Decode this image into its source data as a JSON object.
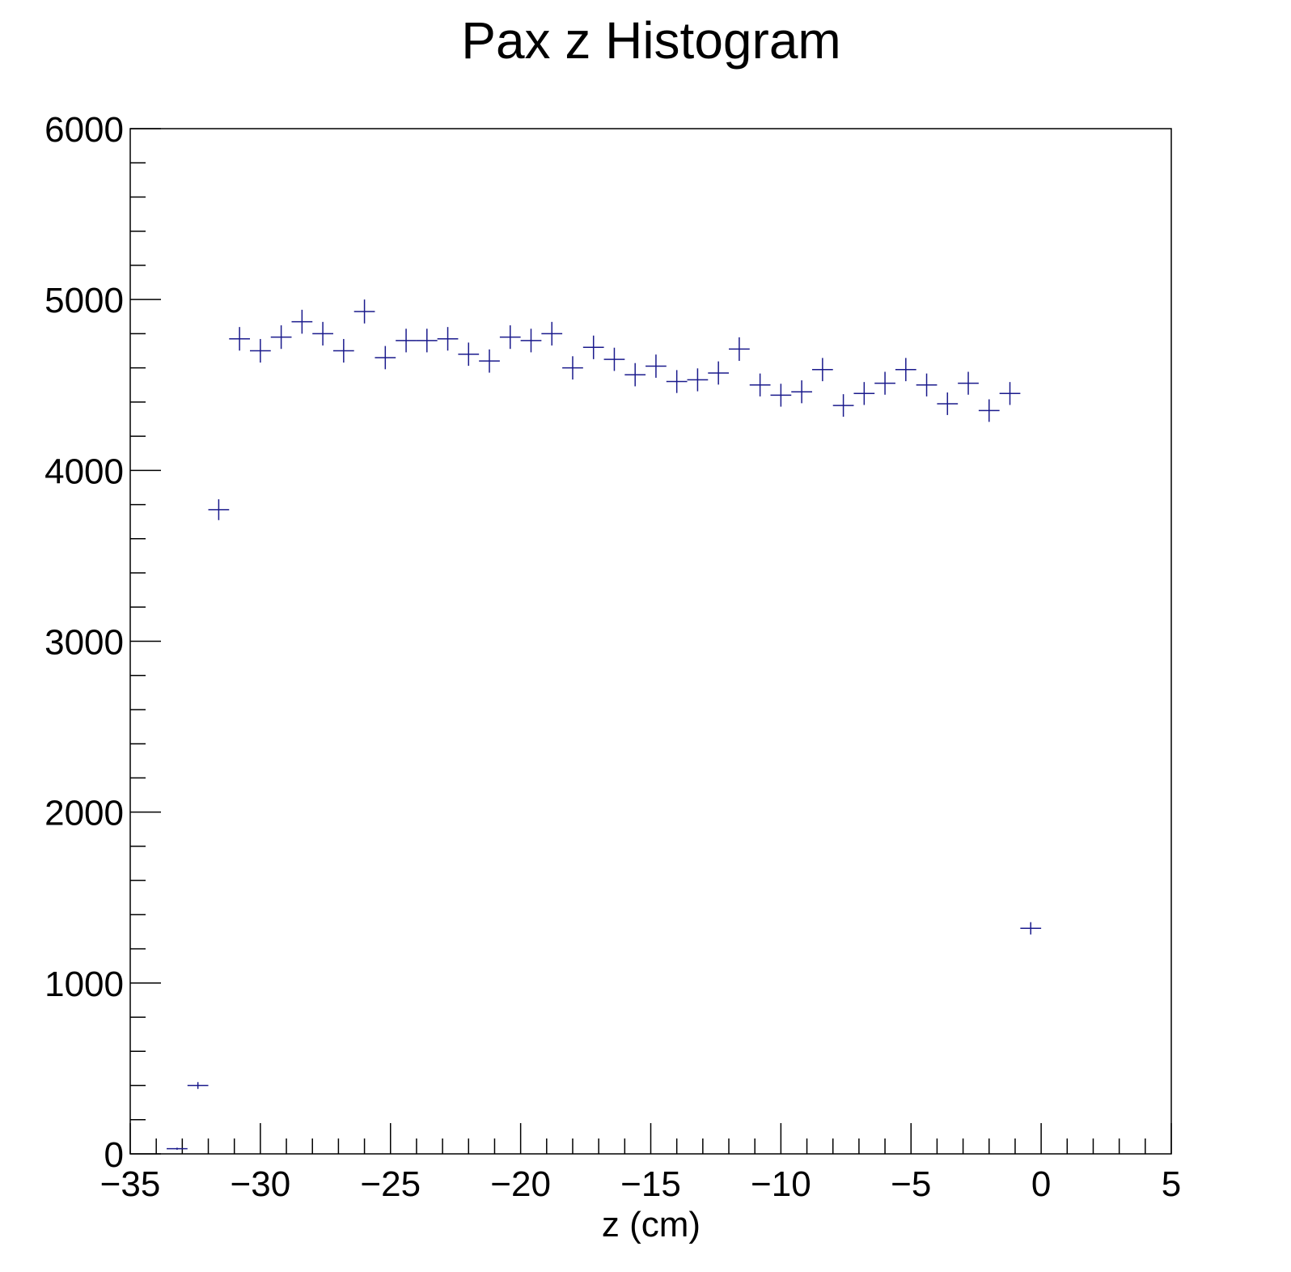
{
  "chart_data": {
    "type": "scatter",
    "title": "Pax z Histogram",
    "xlabel": "z (cm)",
    "ylabel": "",
    "xlim": [
      -35,
      5
    ],
    "ylim": [
      0,
      6000
    ],
    "x_ticks": [
      -35,
      -30,
      -25,
      -20,
      -15,
      -10,
      -5,
      0,
      5
    ],
    "x_tick_labels": [
      "−35",
      "−30",
      "−25",
      "−20",
      "−15",
      "−10",
      "−5",
      "0",
      "5"
    ],
    "y_ticks": [
      0,
      1000,
      2000,
      3000,
      4000,
      5000,
      6000
    ],
    "y_tick_labels": [
      "0",
      "1000",
      "2000",
      "3000",
      "4000",
      "5000",
      "6000"
    ],
    "grid": false,
    "legend": "none",
    "marker": "cross",
    "color": "#1a1a8c",
    "bin_width": 0.8,
    "x": [
      -33.2,
      -32.4,
      -31.6,
      -30.8,
      -30.0,
      -29.2,
      -28.4,
      -27.6,
      -26.8,
      -26.0,
      -25.2,
      -24.4,
      -23.6,
      -22.8,
      -22.0,
      -21.2,
      -20.4,
      -19.6,
      -18.8,
      -18.0,
      -17.2,
      -16.4,
      -15.6,
      -14.8,
      -14.0,
      -13.2,
      -12.4,
      -11.6,
      -10.8,
      -10.0,
      -9.2,
      -8.4,
      -7.6,
      -6.8,
      -6.0,
      -5.2,
      -4.4,
      -3.6,
      -2.8,
      -2.0,
      -1.2,
      -0.4
    ],
    "y": [
      30,
      400,
      3770,
      4770,
      4700,
      4780,
      4870,
      4800,
      4700,
      4930,
      4660,
      4760,
      4760,
      4770,
      4680,
      4640,
      4780,
      4760,
      4800,
      4600,
      4720,
      4650,
      4560,
      4610,
      4520,
      4530,
      4570,
      4710,
      4500,
      4440,
      4460,
      4590,
      4380,
      4450,
      4510,
      4590,
      4500,
      4390,
      4510,
      4350,
      4450,
      1320
    ],
    "yerr": [
      6,
      20,
      61,
      69,
      69,
      69,
      70,
      69,
      69,
      70,
      68,
      69,
      69,
      69,
      68,
      68,
      69,
      69,
      69,
      68,
      69,
      68,
      68,
      68,
      67,
      67,
      68,
      69,
      67,
      67,
      67,
      68,
      66,
      67,
      67,
      68,
      67,
      66,
      67,
      66,
      67,
      36
    ]
  }
}
